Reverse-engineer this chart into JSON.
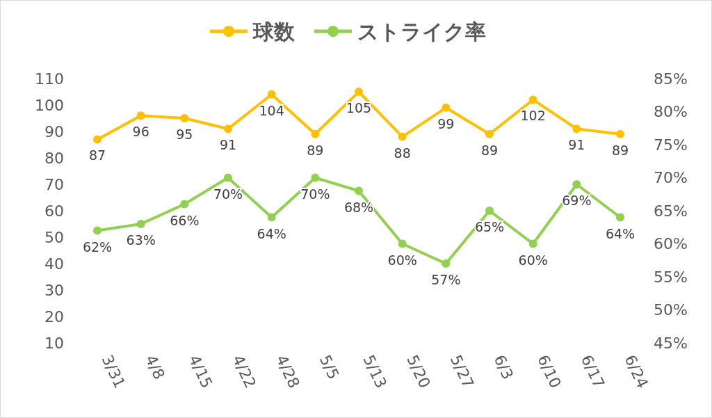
{
  "chart_data": {
    "type": "line",
    "categories": [
      "3/31",
      "4/8",
      "4/15",
      "4/22",
      "4/28",
      "5/5",
      "5/13",
      "5/20",
      "5/27",
      "6/3",
      "6/10",
      "6/17",
      "6/24"
    ],
    "series": [
      {
        "name": "球数",
        "color": "#ffc000",
        "values": [
          87,
          96,
          95,
          91,
          104,
          89,
          105,
          88,
          99,
          89,
          102,
          91,
          89
        ]
      },
      {
        "name": "ストライク率",
        "color": "#92d050",
        "axis": "y2",
        "values": [
          62,
          63,
          66,
          70,
          64,
          70,
          68,
          60,
          57,
          65,
          60,
          69,
          64
        ],
        "value_labels": [
          "62%",
          "63%",
          "66%",
          "70%",
          "64%",
          "70%",
          "68%",
          "60%",
          "57%",
          "65%",
          "60%",
          "69%",
          "64%"
        ]
      }
    ],
    "ylim": [
      10,
      110
    ],
    "yticks": [
      10,
      20,
      30,
      40,
      50,
      60,
      70,
      80,
      90,
      100,
      110
    ],
    "y2lim": [
      45,
      85
    ],
    "y2ticks": [
      {
        "value": 45,
        "label": "45%"
      },
      {
        "value": 50,
        "label": "50%"
      },
      {
        "value": 55,
        "label": "55%"
      },
      {
        "value": 60,
        "label": "60%"
      },
      {
        "value": 65,
        "label": "65%"
      },
      {
        "value": 70,
        "label": "70%"
      },
      {
        "value": 75,
        "label": "75%"
      },
      {
        "value": 80,
        "label": "80%"
      },
      {
        "value": 85,
        "label": "85%"
      }
    ],
    "data_labels": true,
    "marker": "circle",
    "legend": "top",
    "grid": false
  }
}
